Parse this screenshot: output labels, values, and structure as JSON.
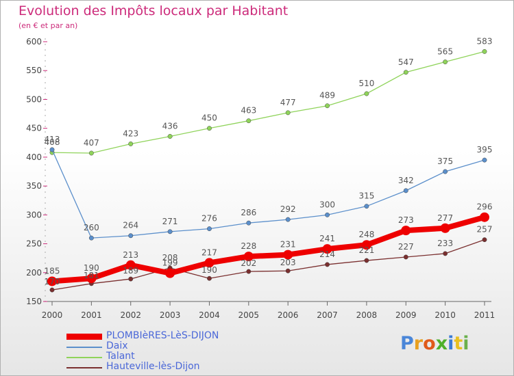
{
  "title": "Evolution des Impôts locaux par Habitant",
  "subtitle": "(en € et par an)",
  "logo": {
    "text": "Proxiti",
    "letter_colors": [
      "#4a86d8",
      "#e8a020",
      "#e05a1a",
      "#4fb02a",
      "#3a7bd5",
      "#e8c020",
      "#6ab04c"
    ]
  },
  "chart_data": {
    "type": "line",
    "x": [
      2000,
      2001,
      2002,
      2003,
      2004,
      2005,
      2006,
      2007,
      2008,
      2009,
      2010,
      2011
    ],
    "ylim": [
      150,
      600
    ],
    "yticks": [
      150,
      200,
      250,
      300,
      350,
      400,
      450,
      500,
      550,
      600
    ],
    "grid": false,
    "legend_position": "bottom-left",
    "series": [
      {
        "name": "PLOMBIèRES-LèS-DIJON",
        "color": "#ee0000",
        "thick": true,
        "values": [
          185,
          190,
          213,
          199,
          217,
          228,
          231,
          241,
          248,
          273,
          277,
          296
        ],
        "labels": [
          "185",
          "190",
          "213",
          "199",
          "217",
          "228",
          "231",
          "241",
          "248",
          "273",
          "277",
          "296"
        ]
      },
      {
        "name": "Daix",
        "color": "#5b8fcb",
        "thick": false,
        "values": [
          413,
          260,
          264,
          271,
          276,
          286,
          292,
          300,
          315,
          342,
          375,
          395
        ],
        "labels": [
          "413",
          "260",
          "264",
          "271",
          "276",
          "286",
          "292",
          "300",
          "315",
          "342",
          "375",
          "395"
        ]
      },
      {
        "name": "Talant",
        "color": "#8fd35a",
        "thick": false,
        "values": [
          408,
          407,
          423,
          436,
          450,
          463,
          477,
          489,
          510,
          547,
          565,
          583
        ],
        "labels": [
          "408",
          "407",
          "423",
          "436",
          "450",
          "463",
          "477",
          "489",
          "510",
          "547",
          "565",
          "583"
        ]
      },
      {
        "name": "Hauteville-lès-Dijon",
        "color": "#7a2f2f",
        "thick": false,
        "values": [
          170,
          181,
          189,
          208,
          190,
          202,
          203,
          214,
          221,
          227,
          233,
          257
        ],
        "labels": [
          "170",
          "181",
          "189",
          "208",
          "190",
          "202",
          "203",
          "214",
          "221",
          "227",
          "233",
          "257"
        ]
      }
    ]
  }
}
